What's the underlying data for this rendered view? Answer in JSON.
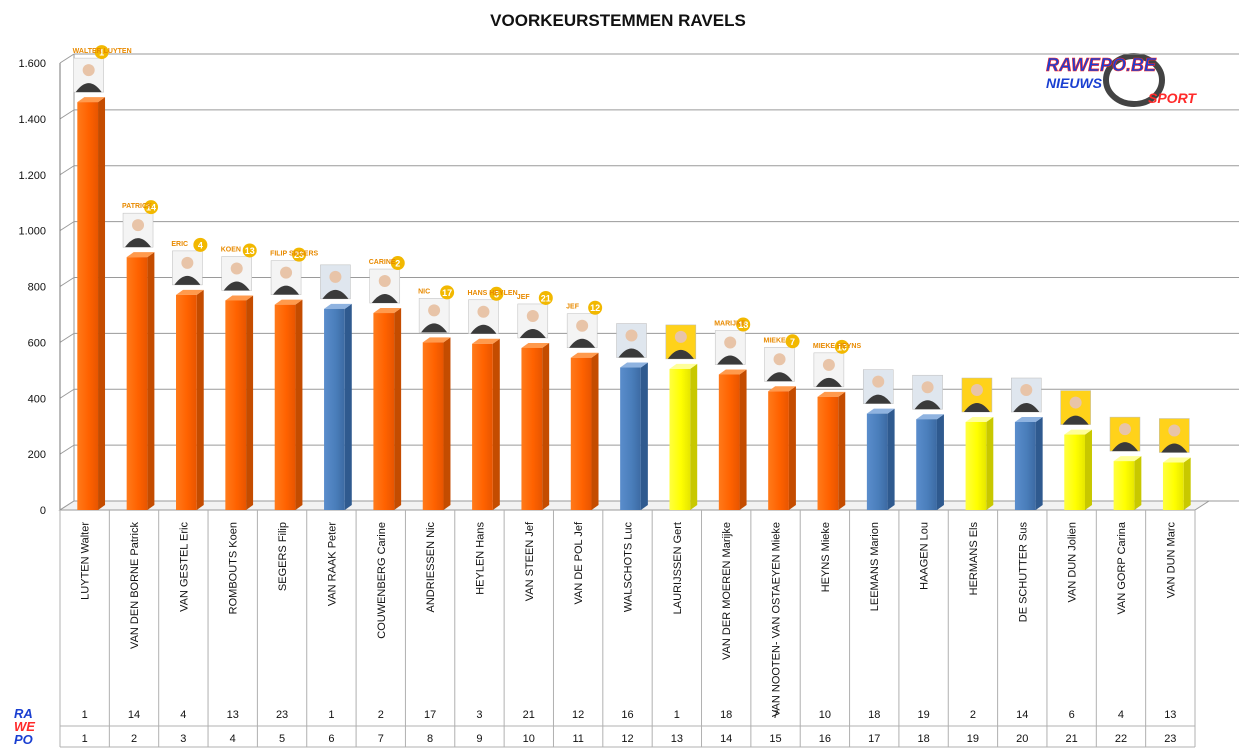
{
  "colors": {
    "cd_v": "#ff6a00",
    "dorpslijst": "#4a7ebb",
    "open": "#ffff00"
  },
  "logo": {
    "brand": "RAWEPO.BE",
    "line2a": "NIEUWS",
    "line2b": "SPORT",
    "side_logo": [
      "RA",
      "WE",
      "PO"
    ]
  },
  "chart_data": {
    "type": "bar",
    "title": "VOORKEURSTEMMEN RAVELS",
    "ylim": [
      0,
      1600
    ],
    "yticks": [
      0,
      200,
      400,
      600,
      800,
      1000,
      1200,
      1400,
      1600
    ],
    "ytick_labels": [
      "0",
      "200",
      "400",
      "600",
      "800",
      "1.000",
      "1.200",
      "1.400",
      "1.600"
    ],
    "grid": true,
    "categories": [
      "LUYTEN Walter",
      "VAN DEN BORNE Patrick",
      "VAN GESTEL Eric",
      "ROMBOUTS Koen",
      "SEGERS Filip",
      "VAN RAAK Peter",
      "COUWENBERG Carine",
      "ANDRIESSEN Nic",
      "HEYLEN Hans",
      "VAN STEEN Jef",
      "VAN DE POL Jef",
      "WALSCHOTS Luc",
      "LAURIJSSEN Gert",
      "VAN DER MOEREN Marijke",
      "VAN NOOTEN- VAN OSTAEYEN Mieke",
      "HEYNS Mieke",
      "LEEMANS Marion",
      "HAAGEN Lou",
      "HERMANS Els",
      "DE SCHUTTER Sus",
      "VAN DUN Jolien",
      "VAN GORP Carina",
      "VAN DUN Marc"
    ],
    "values": [
      1460,
      905,
      770,
      750,
      735,
      720,
      705,
      600,
      595,
      580,
      545,
      510,
      505,
      485,
      425,
      405,
      345,
      325,
      315,
      315,
      270,
      175,
      170
    ],
    "party": [
      "cd_v",
      "cd_v",
      "cd_v",
      "cd_v",
      "cd_v",
      "dorpslijst",
      "cd_v",
      "cd_v",
      "cd_v",
      "cd_v",
      "cd_v",
      "dorpslijst",
      "open",
      "cd_v",
      "cd_v",
      "cd_v",
      "dorpslijst",
      "dorpslijst",
      "open",
      "dorpslijst",
      "open",
      "open",
      "open"
    ],
    "list_position": [
      "1",
      "14",
      "4",
      "13",
      "23",
      "1",
      "2",
      "17",
      "3",
      "21",
      "12",
      "16",
      "1",
      "18",
      "7",
      "10",
      "18",
      "19",
      "2",
      "14",
      "6",
      "4",
      "13"
    ],
    "rank": [
      "1",
      "2",
      "3",
      "4",
      "5",
      "6",
      "7",
      "8",
      "9",
      "10",
      "11",
      "12",
      "13",
      "14",
      "15",
      "16",
      "17",
      "18",
      "19",
      "20",
      "21",
      "22",
      "23"
    ],
    "photo_badges": [
      "WALTER LUYTEN",
      "PATRICK",
      "ERIC",
      "KOEN",
      "FILIP SEGERS",
      "",
      "CARINE",
      "NIC",
      "HANS HEYLEN",
      "JEF",
      "JEF",
      "",
      "",
      "MARIJKE",
      "MIEKE",
      "MIEKE HEYNS",
      "",
      "",
      "",
      "",
      "",
      "",
      ""
    ]
  }
}
